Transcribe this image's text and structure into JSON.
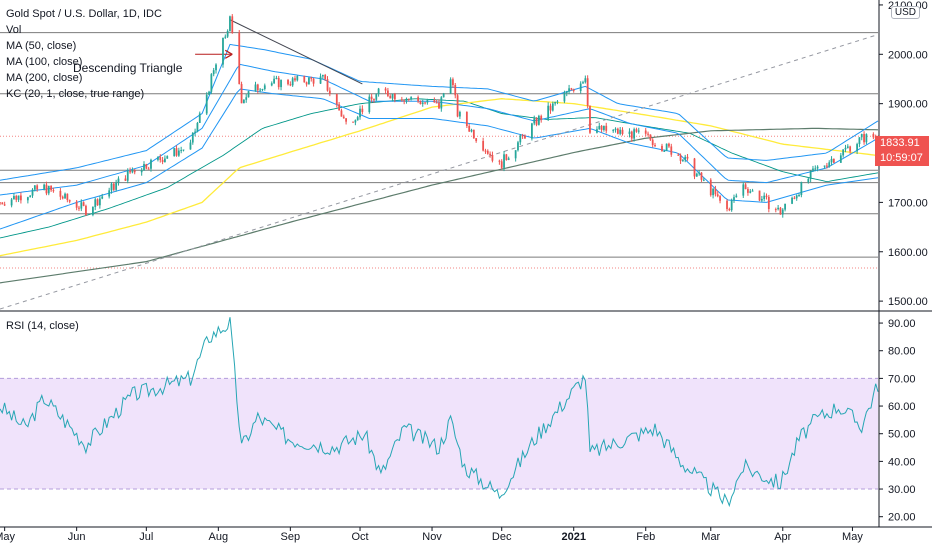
{
  "header": {
    "title": "Gold Spot / U.S. Dollar, 1D, IDC",
    "studies": [
      "Vol",
      "MA (50, close)",
      "MA (100, close)",
      "MA (200, close)",
      "KC (20, 1, close, true range)"
    ],
    "currency": "USD"
  },
  "annotation": {
    "text": "Descending Triangle"
  },
  "price_tag": {
    "price": "1833.91",
    "countdown": "10:59:07"
  },
  "rsi_panel": {
    "label": "RSI (14, close)"
  },
  "colors": {
    "up": "#26a69a",
    "down": "#ef5350",
    "kc": "#2196f3",
    "ma50": "#009688",
    "ma100": "#ffeb3b",
    "ma200": "#5d7c6c",
    "rsi_line": "#26a6b4",
    "rsi_band": "#f0e3fb",
    "level_line": "#7b7b7b",
    "tag_bg": "#ef5350"
  },
  "chart_data": [
    {
      "type": "candlestick",
      "title": "Gold Spot / U.S. Dollar, 1D, IDC",
      "y_ticks": [
        1500,
        1600,
        1700,
        1800,
        1900,
        2000,
        2100
      ],
      "y_tick_labels": [
        "1500.00",
        "1600.00",
        "1700.00",
        "1800.00",
        "1900.00",
        "2000.00",
        "2100.00"
      ],
      "ylim": [
        1482,
        2110
      ],
      "x_ticks": [
        {
          "label": "May",
          "date": "2020-05-01"
        },
        {
          "label": "Jun",
          "date": "2020-06-01"
        },
        {
          "label": "Jul",
          "date": "2020-07-01"
        },
        {
          "label": "Aug",
          "date": "2020-08-01"
        },
        {
          "label": "Sep",
          "date": "2020-09-01"
        },
        {
          "label": "Oct",
          "date": "2020-10-01"
        },
        {
          "label": "Nov",
          "date": "2020-11-01"
        },
        {
          "label": "Dec",
          "date": "2020-12-01"
        },
        {
          "label": "2021",
          "date": "2021-01-01",
          "bold": true
        },
        {
          "label": "Feb",
          "date": "2021-02-01"
        },
        {
          "label": "Mar",
          "date": "2021-03-01"
        },
        {
          "label": "Apr",
          "date": "2021-04-01"
        },
        {
          "label": "May",
          "date": "2021-05-01"
        }
      ],
      "x_range": [
        "2020-04-29",
        "2021-05-12"
      ],
      "horizontal_levels": [
        2044,
        1920,
        1765,
        1740,
        1677,
        1589
      ],
      "dotted_levels": [
        1834,
        1567
      ],
      "trendlines": [
        {
          "name": "descending-triangle-top",
          "from": {
            "date": "2020-08-06",
            "value": 2070
          },
          "to": {
            "date": "2020-10-02",
            "value": 1940
          },
          "color": "#434651",
          "style": "solid"
        },
        {
          "name": "rising-trendline",
          "from": {
            "date": "2020-04-29",
            "value": 1484
          },
          "to": {
            "date": "2021-05-12",
            "value": 2040
          },
          "color": "#9598a1",
          "style": "dashed"
        },
        {
          "name": "annotation-arrow",
          "from": {
            "date": "2020-07-22",
            "value": 2000
          },
          "to": {
            "date": "2020-08-07",
            "value": 2000
          },
          "color": "#b71c1c",
          "style": "arrow"
        }
      ],
      "series": [
        {
          "name": "MA (50, close)",
          "anchors": [
            [
              "2020-04-29",
              1628
            ],
            [
              "2020-05-20",
              1650
            ],
            [
              "2020-06-15",
              1688
            ],
            [
              "2020-07-10",
              1730
            ],
            [
              "2020-08-03",
              1795
            ],
            [
              "2020-08-20",
              1850
            ],
            [
              "2020-09-10",
              1880
            ],
            [
              "2020-10-01",
              1900
            ],
            [
              "2020-10-25",
              1910
            ],
            [
              "2020-11-15",
              1905
            ],
            [
              "2020-12-01",
              1880
            ],
            [
              "2020-12-20",
              1868
            ],
            [
              "2021-01-10",
              1872
            ],
            [
              "2021-01-31",
              1855
            ],
            [
              "2021-02-20",
              1840
            ],
            [
              "2021-03-10",
              1800
            ],
            [
              "2021-04-01",
              1762
            ],
            [
              "2021-04-20",
              1742
            ],
            [
              "2021-05-12",
              1760
            ]
          ]
        },
        {
          "name": "MA (100, close)",
          "anchors": [
            [
              "2020-04-29",
              1592
            ],
            [
              "2020-06-01",
              1623
            ],
            [
              "2020-07-01",
              1660
            ],
            [
              "2020-07-25",
              1700
            ],
            [
              "2020-08-10",
              1770
            ],
            [
              "2020-09-01",
              1802
            ],
            [
              "2020-10-01",
              1845
            ],
            [
              "2020-11-01",
              1893
            ],
            [
              "2020-12-01",
              1910
            ],
            [
              "2021-01-01",
              1900
            ],
            [
              "2021-02-01",
              1877
            ],
            [
              "2021-03-01",
              1855
            ],
            [
              "2021-04-01",
              1818
            ],
            [
              "2021-05-12",
              1795
            ]
          ]
        },
        {
          "name": "MA (200, close)",
          "anchors": [
            [
              "2020-04-29",
              1537
            ],
            [
              "2020-07-01",
              1580
            ],
            [
              "2020-09-01",
              1660
            ],
            [
              "2020-11-01",
              1735
            ],
            [
              "2021-01-01",
              1801
            ],
            [
              "2021-02-01",
              1830
            ],
            [
              "2021-03-01",
              1845
            ],
            [
              "2021-04-15",
              1850
            ],
            [
              "2021-05-12",
              1847
            ]
          ]
        },
        {
          "name": "KC upper",
          "anchors": [
            [
              "2020-04-29",
              1745
            ],
            [
              "2020-06-01",
              1770
            ],
            [
              "2020-07-01",
              1805
            ],
            [
              "2020-07-25",
              1880
            ],
            [
              "2020-08-06",
              2020
            ],
            [
              "2020-08-20",
              2010
            ],
            [
              "2020-09-10",
              1990
            ],
            [
              "2020-10-01",
              1945
            ],
            [
              "2020-11-01",
              1935
            ],
            [
              "2020-11-25",
              1930
            ],
            [
              "2020-12-15",
              1905
            ],
            [
              "2021-01-06",
              1935
            ],
            [
              "2021-01-20",
              1900
            ],
            [
              "2021-02-15",
              1880
            ],
            [
              "2021-03-08",
              1790
            ],
            [
              "2021-03-25",
              1785
            ],
            [
              "2021-04-20",
              1800
            ],
            [
              "2021-05-12",
              1865
            ]
          ]
        },
        {
          "name": "KC middle",
          "anchors": [
            [
              "2020-04-29",
              1715
            ],
            [
              "2020-06-01",
              1735
            ],
            [
              "2020-07-01",
              1775
            ],
            [
              "2020-07-25",
              1850
            ],
            [
              "2020-08-10",
              1980
            ],
            [
              "2020-08-25",
              1965
            ],
            [
              "2020-09-15",
              1950
            ],
            [
              "2020-10-05",
              1905
            ],
            [
              "2020-11-01",
              1905
            ],
            [
              "2020-11-25",
              1890
            ],
            [
              "2020-12-15",
              1865
            ],
            [
              "2021-01-08",
              1890
            ],
            [
              "2021-01-25",
              1860
            ],
            [
              "2021-02-15",
              1840
            ],
            [
              "2021-03-08",
              1745
            ],
            [
              "2021-03-25",
              1740
            ],
            [
              "2021-04-20",
              1770
            ],
            [
              "2021-05-12",
              1830
            ]
          ]
        },
        {
          "name": "KC lower",
          "anchors": [
            [
              "2020-04-29",
              1646
            ],
            [
              "2020-06-01",
              1700
            ],
            [
              "2020-07-01",
              1740
            ],
            [
              "2020-07-25",
              1810
            ],
            [
              "2020-08-10",
              1930
            ],
            [
              "2020-08-25",
              1920
            ],
            [
              "2020-09-15",
              1910
            ],
            [
              "2020-10-05",
              1870
            ],
            [
              "2020-11-01",
              1870
            ],
            [
              "2020-11-25",
              1855
            ],
            [
              "2020-12-15",
              1830
            ],
            [
              "2021-01-08",
              1850
            ],
            [
              "2021-01-25",
              1820
            ],
            [
              "2021-02-15",
              1800
            ],
            [
              "2021-03-08",
              1705
            ],
            [
              "2021-03-25",
              1700
            ],
            [
              "2021-04-20",
              1735
            ],
            [
              "2021-05-12",
              1750
            ]
          ]
        },
        {
          "name": "Price path",
          "anchors": [
            [
              "2020-04-29",
              1700
            ],
            [
              "2020-05-18",
              1730
            ],
            [
              "2020-06-05",
              1685
            ],
            [
              "2020-06-25",
              1765
            ],
            [
              "2020-07-20",
              1815
            ],
            [
              "2020-08-06",
              2068
            ],
            [
              "2020-08-11",
              1910
            ],
            [
              "2020-08-20",
              1940
            ],
            [
              "2020-09-15",
              1950
            ],
            [
              "2020-09-25",
              1860
            ],
            [
              "2020-10-10",
              1925
            ],
            [
              "2020-11-04",
              1895
            ],
            [
              "2020-11-09",
              1960
            ],
            [
              "2020-11-12",
              1880
            ],
            [
              "2020-11-30",
              1775
            ],
            [
              "2020-12-15",
              1860
            ],
            [
              "2021-01-06",
              1955
            ],
            [
              "2021-01-08",
              1850
            ],
            [
              "2021-01-31",
              1835
            ],
            [
              "2021-02-16",
              1795
            ],
            [
              "2021-03-08",
              1685
            ],
            [
              "2021-03-15",
              1735
            ],
            [
              "2021-03-31",
              1680
            ],
            [
              "2021-04-15",
              1765
            ],
            [
              "2021-05-05",
              1830
            ],
            [
              "2021-05-12",
              1834
            ]
          ]
        }
      ]
    },
    {
      "type": "line",
      "title": "RSI (14, close)",
      "y_ticks": [
        20,
        30,
        40,
        50,
        60,
        70,
        80,
        90
      ],
      "y_tick_labels": [
        "20.00",
        "30.00",
        "40.00",
        "50.00",
        "60.00",
        "70.00",
        "80.00",
        "90.00"
      ],
      "ylim": [
        17,
        94
      ],
      "band": [
        30,
        70
      ],
      "series": [
        {
          "name": "RSI (14, close)",
          "anchors": [
            [
              "2020-04-29",
              60
            ],
            [
              "2020-05-10",
              52
            ],
            [
              "2020-05-18",
              63
            ],
            [
              "2020-06-05",
              46
            ],
            [
              "2020-06-25",
              64
            ],
            [
              "2020-07-20",
              70
            ],
            [
              "2020-07-28",
              85
            ],
            [
              "2020-08-06",
              90
            ],
            [
              "2020-08-11",
              45
            ],
            [
              "2020-08-18",
              56
            ],
            [
              "2020-09-01",
              48
            ],
            [
              "2020-09-20",
              45
            ],
            [
              "2020-10-03",
              50
            ],
            [
              "2020-10-10",
              35
            ],
            [
              "2020-10-20",
              52
            ],
            [
              "2020-11-04",
              45
            ],
            [
              "2020-11-09",
              55
            ],
            [
              "2020-11-15",
              38
            ],
            [
              "2020-11-30",
              28
            ],
            [
              "2020-12-15",
              48
            ],
            [
              "2021-01-06",
              71
            ],
            [
              "2021-01-08",
              43
            ],
            [
              "2021-01-20",
              47
            ],
            [
              "2021-02-05",
              52
            ],
            [
              "2021-02-16",
              40
            ],
            [
              "2021-03-08",
              25
            ],
            [
              "2021-03-15",
              38
            ],
            [
              "2021-03-31",
              32
            ],
            [
              "2021-04-08",
              48
            ],
            [
              "2021-04-15",
              55
            ],
            [
              "2021-04-25",
              60
            ],
            [
              "2021-05-05",
              53
            ],
            [
              "2021-05-12",
              68
            ]
          ]
        }
      ]
    }
  ]
}
